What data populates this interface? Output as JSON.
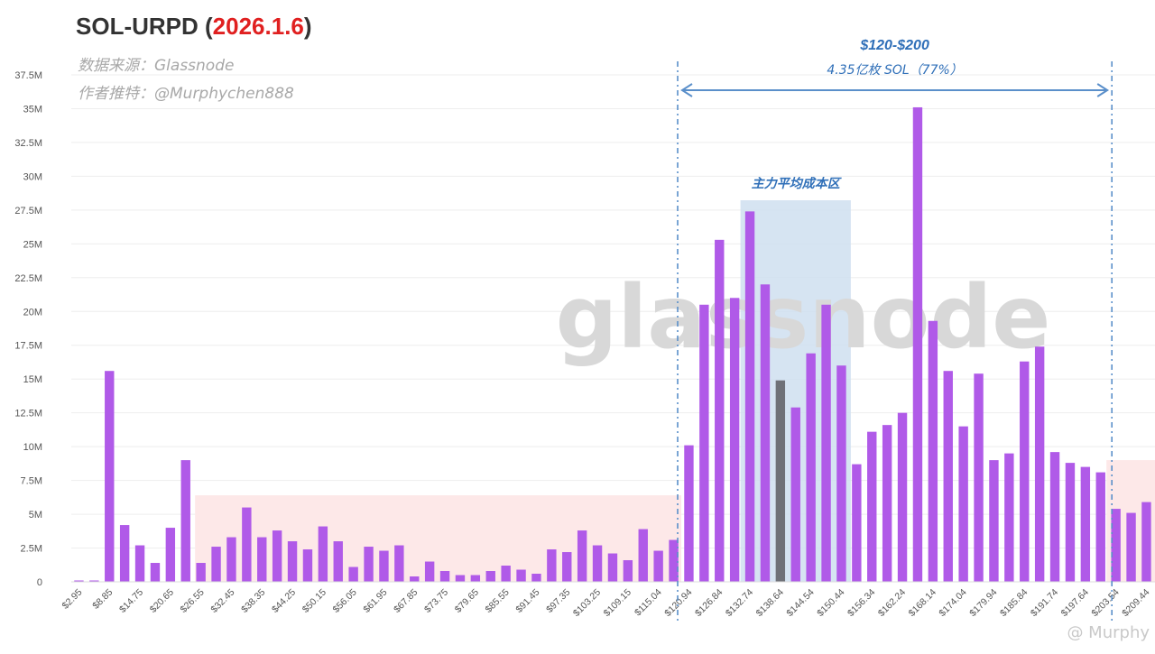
{
  "title": {
    "main": "SOL-URPD",
    "date": "2026.1.6"
  },
  "subtitles": {
    "source": "数据来源：Glassnode",
    "author": "作者推特：@Murphychen888"
  },
  "watermark": "glassnode",
  "footer_watermark": "@ Murphy",
  "colors": {
    "bar": "#b05ae8",
    "bar_highlight": "#6f7178",
    "range_line": "#5a8fca",
    "range_text": "#2f6fb8",
    "core_zone_fill": "#cfdff0",
    "pink_zone_fill": "#fde8e8",
    "grid": "#eeeeee",
    "axis_text": "#555555"
  },
  "annotations": {
    "range_label": "$120-$200",
    "range_sub": "4.35亿枚 SOL（77%）",
    "core_zone_label": "主力平均成本区"
  },
  "chart_data": {
    "type": "bar",
    "title": "SOL-URPD (2026.1.6)",
    "xlabel": "",
    "ylabel": "",
    "ylim": [
      0,
      37500000
    ],
    "y_ticks": [
      {
        "value": 0,
        "label": "0"
      },
      {
        "value": 2500000,
        "label": "2.5M"
      },
      {
        "value": 5000000,
        "label": "5M"
      },
      {
        "value": 7500000,
        "label": "7.5M"
      },
      {
        "value": 10000000,
        "label": "10M"
      },
      {
        "value": 12500000,
        "label": "12.5M"
      },
      {
        "value": 15000000,
        "label": "15M"
      },
      {
        "value": 17500000,
        "label": "17.5M"
      },
      {
        "value": 20000000,
        "label": "20M"
      },
      {
        "value": 22500000,
        "label": "22.5M"
      },
      {
        "value": 25000000,
        "label": "25M"
      },
      {
        "value": 27500000,
        "label": "27.5M"
      },
      {
        "value": 30000000,
        "label": "30M"
      },
      {
        "value": 32500000,
        "label": "32.5M"
      },
      {
        "value": 35000000,
        "label": "35M"
      },
      {
        "value": 37500000,
        "label": "37.5M"
      }
    ],
    "x_tick_labels": [
      "$2.95",
      "$8.85",
      "$14.75",
      "$20.65",
      "$26.55",
      "$32.45",
      "$38.35",
      "$44.25",
      "$50.15",
      "$56.05",
      "$61.95",
      "$67.85",
      "$73.75",
      "$79.65",
      "$85.55",
      "$91.45",
      "$97.35",
      "$103.25",
      "$109.15",
      "$115.04",
      "$120.94",
      "$126.84",
      "$132.74",
      "$138.64",
      "$144.54",
      "$150.44",
      "$156.34",
      "$162.24",
      "$168.14",
      "$174.04",
      "$179.94",
      "$185.84",
      "$191.74",
      "$197.64",
      "$203.54",
      "$209.44"
    ],
    "x_tick_every": 2,
    "grid": true,
    "legend": "none",
    "values": [
      0.1,
      0.1,
      15.6,
      4.2,
      2.7,
      1.4,
      4.0,
      9.0,
      1.4,
      2.6,
      3.3,
      5.5,
      3.3,
      3.8,
      3.0,
      2.4,
      4.1,
      3.0,
      1.1,
      2.6,
      2.3,
      2.7,
      0.4,
      1.5,
      0.8,
      0.5,
      0.5,
      0.8,
      1.2,
      0.9,
      0.6,
      2.4,
      2.2,
      3.8,
      2.7,
      2.1,
      1.6,
      3.9,
      2.3,
      3.1,
      10.1,
      20.5,
      25.3,
      21.0,
      27.4,
      22.0,
      14.9,
      12.9,
      16.9,
      20.5,
      16.0,
      8.7,
      11.1,
      11.6,
      12.5,
      35.1,
      19.3,
      15.6,
      11.5,
      15.4,
      9.0,
      9.5,
      16.3,
      17.4,
      9.6,
      8.8,
      8.5,
      8.1,
      5.4,
      5.1,
      5.9
    ],
    "values_unit": "M",
    "highlight_index": 46,
    "regions": [
      {
        "name": "range",
        "from_index": 40,
        "to_index": 67
      },
      {
        "name": "core",
        "from_index": 44,
        "to_index": 50
      },
      {
        "name": "low-pink",
        "from_index": 8,
        "to_index": 39,
        "y_top": 6400000
      },
      {
        "name": "high-pink",
        "from_index": 68,
        "to_index": 70,
        "y_top": 9000000
      }
    ]
  }
}
